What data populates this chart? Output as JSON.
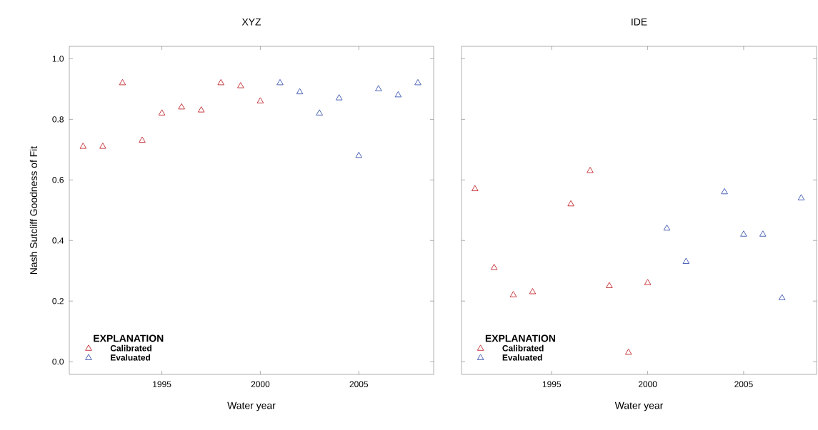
{
  "chart_data": [
    {
      "type": "scatter",
      "title": "XYZ",
      "xlabel": "Water year",
      "ylabel": "Nash Sutcliff Goodness of Fit",
      "legend_title": "EXPLANATION",
      "legend": "bottom left",
      "marker": "triangle",
      "grid": false,
      "xlim": [
        1990.3,
        2008.8
      ],
      "xticks": [
        1995,
        2000,
        2005
      ],
      "ylim": [
        -0.042,
        1.041
      ],
      "yticks": [
        {
          "value": 0,
          "label": "0.0"
        },
        {
          "value": 0.2,
          "label": "0.2"
        },
        {
          "value": 0.4,
          "label": "0.4"
        },
        {
          "value": 0.6,
          "label": "0.6"
        },
        {
          "value": 0.8,
          "label": "0.8"
        },
        {
          "value": 1,
          "label": "1.0"
        }
      ],
      "series": [
        {
          "name": "Calibrated",
          "color": "#c0272d",
          "x": [
            1991,
            1992,
            1993,
            1994,
            1995,
            1996,
            1997,
            1998,
            1999,
            2000
          ],
          "values": [
            0.71,
            0.71,
            0.92,
            0.73,
            0.82,
            0.84,
            0.83,
            0.92,
            0.91,
            0.86
          ]
        },
        {
          "name": "Evaluated",
          "color": "#3b55b0",
          "x": [
            2001,
            2002,
            2003,
            2004,
            2005,
            2006,
            2007,
            2008
          ],
          "values": [
            0.92,
            0.89,
            0.82,
            0.87,
            0.68,
            0.9,
            0.88,
            0.92
          ]
        }
      ]
    },
    {
      "type": "scatter",
      "title": "IDE",
      "xlabel": "Water year",
      "legend_title": "EXPLANATION",
      "legend": "bottom left",
      "marker": "triangle",
      "grid": false,
      "tick_labels": "x",
      "xlim": [
        1990.3,
        2008.8
      ],
      "xticks": [
        1995,
        2000,
        2005
      ],
      "ylim": [
        -0.042,
        1.041
      ],
      "yticks": [
        {
          "value": 0,
          "label": null
        },
        {
          "value": 0.2,
          "label": null
        },
        {
          "value": 0.4,
          "label": null
        },
        {
          "value": 0.6,
          "label": null
        },
        {
          "value": 0.8,
          "label": null
        },
        {
          "value": 1,
          "label": null
        }
      ],
      "series": [
        {
          "name": "Calibrated",
          "color": "#c0272d",
          "x": [
            1991,
            1992,
            1993,
            1994,
            1996,
            1997,
            1998,
            1999,
            2000
          ],
          "values": [
            0.57,
            0.31,
            0.22,
            0.23,
            0.52,
            0.63,
            0.25,
            0.03,
            0.26
          ]
        },
        {
          "name": "Evaluated",
          "color": "#3b55b0",
          "x": [
            2001,
            2002,
            2004,
            2005,
            2006,
            2007,
            2008
          ],
          "values": [
            0.44,
            0.33,
            0.56,
            0.42,
            0.42,
            0.21,
            0.54
          ]
        }
      ]
    }
  ]
}
